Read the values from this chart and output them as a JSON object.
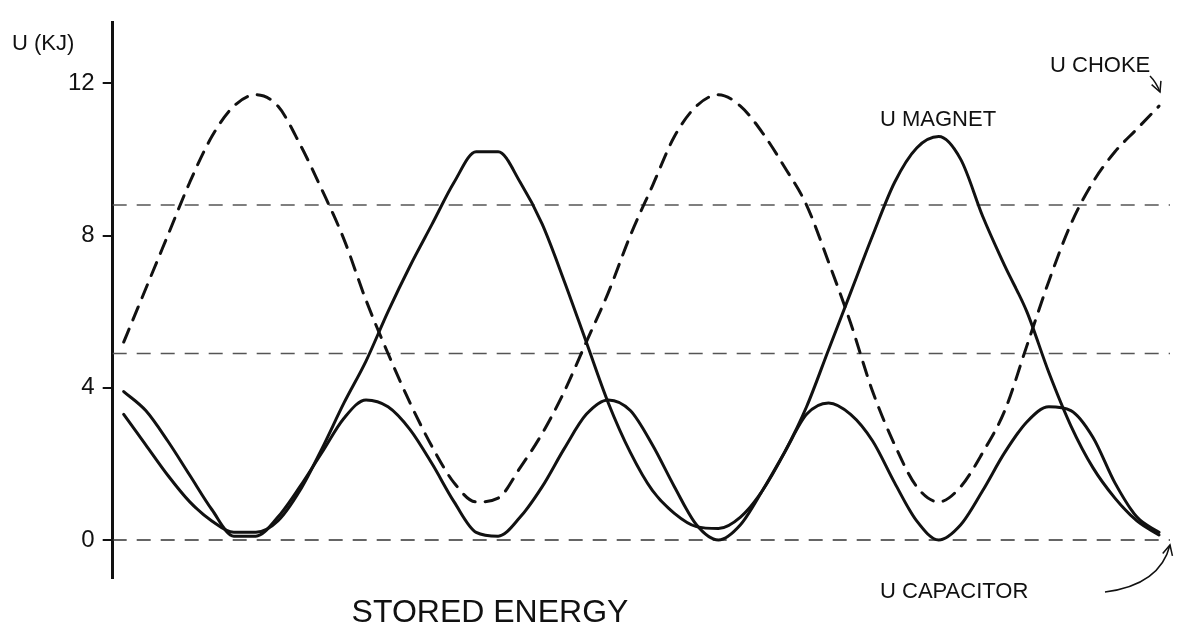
{
  "chart_data": {
    "type": "line",
    "title": "STORED ENERGY",
    "ylabel": "U (KJ)",
    "categories": [
      null,
      null,
      null,
      null,
      null,
      null,
      null,
      null,
      null,
      null,
      null,
      null,
      null,
      null,
      null,
      null,
      null,
      null,
      null,
      null,
      null,
      null,
      null,
      null,
      null,
      null,
      null,
      null,
      null,
      null,
      null,
      null,
      null,
      null,
      null,
      null,
      null,
      null,
      null,
      null,
      null,
      null,
      null,
      null,
      null,
      null,
      null,
      null
    ],
    "series": [
      {
        "name": "U MAGNET",
        "color": "#111111",
        "line_style": "solid",
        "values": [
          3.3,
          2.5,
          1.7,
          1.0,
          0.5,
          0.2,
          0.2,
          0.5,
          1.3,
          2.4,
          3.6,
          4.7,
          6.0,
          7.2,
          8.3,
          9.4,
          10.2,
          10.2,
          9.4,
          8.3,
          6.8,
          5.2,
          3.6,
          2.3,
          1.3,
          0.7,
          0.35,
          0.3,
          0.6,
          1.3,
          2.3,
          3.5,
          5.0,
          6.5,
          8.0,
          9.4,
          10.3,
          10.6,
          10.0,
          8.5,
          7.2,
          6.0,
          4.4,
          3.0,
          1.9,
          1.1,
          0.5,
          0.13
        ]
      },
      {
        "name": "U CHOKE",
        "color": "#111111",
        "line_style": "dashed",
        "values": [
          5.2,
          6.6,
          8.0,
          9.4,
          10.6,
          11.4,
          11.7,
          11.4,
          10.4,
          9.2,
          7.9,
          6.3,
          4.9,
          3.6,
          2.45,
          1.5,
          1.0,
          1.1,
          1.9,
          2.8,
          3.9,
          5.2,
          6.5,
          8.0,
          9.3,
          10.6,
          11.4,
          11.7,
          11.4,
          10.7,
          9.8,
          8.8,
          7.3,
          5.7,
          3.9,
          2.5,
          1.4,
          1.0,
          1.4,
          2.3,
          3.4,
          5.1,
          6.8,
          8.3,
          9.4,
          10.2,
          10.8,
          11.4
        ]
      },
      {
        "name": "U CAPACITOR",
        "color": "#111111",
        "line_style": "solid",
        "values": [
          3.9,
          3.4,
          2.6,
          1.7,
          0.8,
          0.1,
          0.1,
          0.6,
          1.4,
          2.3,
          3.2,
          3.68,
          3.5,
          2.9,
          2.0,
          1.0,
          0.2,
          0.1,
          0.6,
          1.4,
          2.4,
          3.3,
          3.68,
          3.4,
          2.5,
          1.4,
          0.4,
          0.0,
          0.4,
          1.3,
          2.3,
          3.3,
          3.6,
          3.3,
          2.6,
          1.5,
          0.5,
          0.0,
          0.4,
          1.3,
          2.3,
          3.1,
          3.5,
          3.4,
          2.7,
          1.5,
          0.6,
          0.2
        ]
      }
    ],
    "ylim": [
      -1,
      13.6
    ],
    "yticks": [
      0,
      4,
      8,
      12
    ],
    "ref_lines": [
      {
        "axis": "y",
        "value": 0,
        "color": "#333333",
        "line_style": "dashed"
      },
      {
        "axis": "y",
        "value": 4.9,
        "color": "#555555",
        "line_style": "dashed"
      },
      {
        "axis": "y",
        "value": 8.8,
        "color": "#555555",
        "line_style": "dashed"
      }
    ],
    "grid": false,
    "legend": false,
    "marker": "none",
    "tick_labels": "y"
  }
}
